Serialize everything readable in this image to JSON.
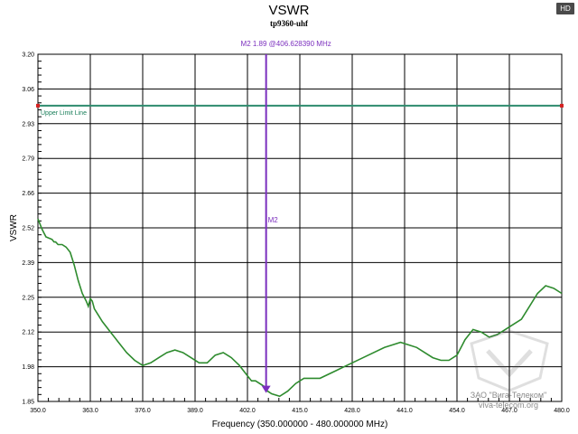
{
  "badge": "HD",
  "chart_data": {
    "type": "line",
    "title": "VSWR",
    "subtitle": "tp9360-uhf",
    "xlabel": "Frequency (350.000000 - 480.000000 MHz)",
    "ylabel": "VSWR",
    "xlim": [
      350.0,
      480.0
    ],
    "ylim": [
      1.85,
      3.2
    ],
    "x_ticks": [
      "350.0",
      "363.0",
      "376.0",
      "389.0",
      "402.0",
      "415.0",
      "428.0",
      "441.0",
      "454.0",
      "467.0",
      "480.0"
    ],
    "y_ticks": [
      "3.20",
      "3.06",
      "2.93",
      "2.79",
      "2.66",
      "2.52",
      "2.39",
      "2.25",
      "2.12",
      "1.98",
      "1.85"
    ],
    "grid": true,
    "series": [
      {
        "color": "#2e8b2e",
        "x": [
          350.0,
          351.0,
          352.0,
          353.5,
          354.0,
          354.4,
          355.0,
          356.0,
          357.0,
          358.0,
          359.0,
          360.0,
          361.0,
          362.0,
          362.5,
          363.0,
          363.5,
          364.0,
          366.0,
          368.0,
          370.0,
          372.0,
          374.0,
          376.0,
          378.0,
          380.0,
          382.0,
          384.0,
          386.0,
          388.0,
          390.0,
          392.0,
          394.0,
          396.0,
          398.0,
          400.0,
          402.0,
          403.0,
          404.0,
          406.0,
          407.0,
          408.0,
          410.0,
          412.0,
          414.0,
          416.0,
          418.0,
          420.0,
          424.0,
          428.0,
          432.0,
          436.0,
          440.0,
          444.0,
          448.0,
          450.0,
          452.0,
          454.0,
          455.0,
          456.0,
          458.0,
          460.0,
          462.0,
          464.0,
          466.0,
          468.0,
          470.0,
          472.0,
          474.0,
          476.0,
          478.0,
          480.0
        ],
        "values": [
          2.56,
          2.52,
          2.49,
          2.48,
          2.47,
          2.47,
          2.46,
          2.46,
          2.45,
          2.43,
          2.38,
          2.32,
          2.27,
          2.24,
          2.22,
          2.25,
          2.24,
          2.21,
          2.16,
          2.12,
          2.08,
          2.04,
          2.01,
          1.99,
          2.0,
          2.02,
          2.04,
          2.05,
          2.04,
          2.02,
          2.0,
          2.0,
          2.03,
          2.04,
          2.02,
          1.99,
          1.95,
          1.93,
          1.93,
          1.91,
          1.89,
          1.88,
          1.87,
          1.89,
          1.92,
          1.94,
          1.94,
          1.94,
          1.97,
          2.0,
          2.03,
          2.06,
          2.08,
          2.06,
          2.02,
          2.01,
          2.01,
          2.03,
          2.06,
          2.09,
          2.13,
          2.12,
          2.1,
          2.11,
          2.13,
          2.15,
          2.17,
          2.22,
          2.27,
          2.3,
          2.29,
          2.27
        ]
      }
    ],
    "limit_line": {
      "label": "Upper Limit Line",
      "value": 3.0,
      "color": "#2e8b6e"
    },
    "marker": {
      "name": "M2",
      "label": "M2  1.89 @406.628390 MHz",
      "x": 406.62839,
      "y": 1.89,
      "color": "#7b2fbe"
    }
  },
  "watermark": {
    "line1": "ЗАО \"Вига-Телеком\"",
    "line2": "viva-telecom.org"
  }
}
